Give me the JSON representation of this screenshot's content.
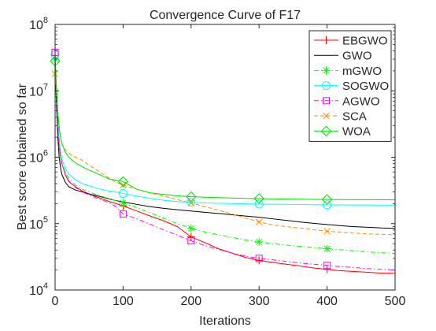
{
  "chart_data": {
    "type": "line",
    "title": "Convergence Curve of F17",
    "xlabel": "Iterations",
    "ylabel": "Best score obtained so far",
    "xlim": [
      0,
      500
    ],
    "ylim": [
      10000,
      100000000
    ],
    "yscale": "log",
    "x_ticks": [
      0,
      100,
      200,
      300,
      400,
      500
    ],
    "y_ticks": [
      {
        "value": 10000,
        "base": "10",
        "exp": "4"
      },
      {
        "value": 100000,
        "base": "10",
        "exp": "5"
      },
      {
        "value": 1000000,
        "base": "10",
        "exp": "6"
      },
      {
        "value": 10000000,
        "base": "10",
        "exp": "7"
      },
      {
        "value": 100000000,
        "base": "10",
        "exp": "8"
      }
    ],
    "grid": false,
    "legend_position": "top-right",
    "series": [
      {
        "name": "EBGWO",
        "color": "#ff0000",
        "line": "solid",
        "marker": "plus",
        "x": [
          0,
          2,
          4,
          6,
          8,
          10,
          15,
          20,
          30,
          40,
          50,
          60,
          70,
          80,
          90,
          100,
          120,
          140,
          160,
          180,
          200,
          220,
          240,
          260,
          280,
          300,
          320,
          340,
          360,
          380,
          400,
          420,
          440,
          460,
          480,
          500
        ],
        "y": [
          30000000,
          8000000,
          3000000,
          1500000,
          1000000,
          800000,
          550000,
          430000,
          360000,
          310000,
          280000,
          255000,
          235000,
          215000,
          200000,
          185000,
          155000,
          130000,
          110000,
          90000,
          63000,
          52000,
          42000,
          36000,
          31000,
          28000,
          26000,
          24500,
          23000,
          21500,
          20500,
          19500,
          19000,
          18500,
          18000,
          17800
        ]
      },
      {
        "name": "GWO",
        "color": "#000000",
        "line": "solid",
        "marker": "none",
        "x": [
          0,
          2,
          4,
          6,
          8,
          10,
          15,
          20,
          30,
          40,
          50,
          60,
          70,
          80,
          90,
          100,
          120,
          140,
          160,
          180,
          200,
          220,
          240,
          260,
          280,
          300,
          320,
          340,
          360,
          380,
          400,
          420,
          440,
          460,
          480,
          500
        ],
        "y": [
          28000000,
          6000000,
          2000000,
          1000000,
          700000,
          550000,
          420000,
          360000,
          320000,
          300000,
          280000,
          265000,
          250000,
          235000,
          222000,
          212000,
          195000,
          180000,
          170000,
          162000,
          155000,
          148000,
          142000,
          136000,
          130000,
          125000,
          118000,
          112000,
          106000,
          101000,
          97000,
          93000,
          90000,
          88000,
          86000,
          85000
        ]
      },
      {
        "name": "mGWO",
        "color": "#00ff00",
        "line": "dashdot",
        "marker": "asterisk",
        "x": [
          0,
          2,
          4,
          6,
          8,
          10,
          15,
          20,
          30,
          40,
          50,
          60,
          70,
          80,
          90,
          100,
          120,
          140,
          160,
          180,
          200,
          220,
          240,
          260,
          280,
          300,
          320,
          340,
          360,
          380,
          400,
          420,
          440,
          460,
          480,
          500
        ],
        "y": [
          30000000,
          8000000,
          3000000,
          1500000,
          1000000,
          800000,
          600000,
          480000,
          380000,
          330000,
          300000,
          275000,
          255000,
          235000,
          220000,
          205000,
          175000,
          145000,
          120000,
          100000,
          85000,
          75000,
          68000,
          62000,
          57000,
          53000,
          50000,
          47500,
          45500,
          43500,
          42000,
          40500,
          39000,
          37500,
          36500,
          35500
        ]
      },
      {
        "name": "SOGWO",
        "color": "#00ffff",
        "line": "solid",
        "marker": "circle",
        "x": [
          0,
          2,
          4,
          6,
          8,
          10,
          15,
          20,
          30,
          40,
          50,
          60,
          70,
          80,
          90,
          100,
          120,
          140,
          160,
          180,
          200,
          220,
          240,
          260,
          280,
          300,
          320,
          340,
          360,
          380,
          400,
          420,
          440,
          460,
          480,
          500
        ],
        "y": [
          35000000,
          10000000,
          3500000,
          1800000,
          1200000,
          950000,
          680000,
          560000,
          460000,
          400000,
          370000,
          345000,
          325000,
          310000,
          298000,
          285000,
          260000,
          240000,
          225000,
          215000,
          210000,
          205000,
          203000,
          201000,
          199000,
          197000,
          196000,
          195000,
          194000,
          193000,
          192000,
          191500,
          191000,
          190500,
          190000,
          190000
        ]
      },
      {
        "name": "AGWO",
        "color": "#ff00ff",
        "line": "dashdot",
        "marker": "square",
        "x": [
          0,
          2,
          4,
          6,
          8,
          10,
          15,
          20,
          30,
          40,
          50,
          60,
          70,
          80,
          90,
          100,
          120,
          140,
          160,
          180,
          200,
          220,
          240,
          260,
          280,
          300,
          320,
          340,
          360,
          380,
          400,
          420,
          440,
          460,
          480,
          500
        ],
        "y": [
          38000000,
          9000000,
          3200000,
          1600000,
          1050000,
          820000,
          560000,
          440000,
          350000,
          300000,
          270000,
          245000,
          225000,
          205000,
          180000,
          140000,
          118000,
          98000,
          80000,
          67000,
          55000,
          47000,
          41000,
          36000,
          32500,
          30000,
          28500,
          27000,
          25500,
          24500,
          23500,
          22500,
          21800,
          21000,
          20500,
          20000
        ]
      },
      {
        "name": "SCA",
        "color": "#ff8c00",
        "line": "dashed",
        "marker": "x",
        "x": [
          0,
          2,
          4,
          6,
          8,
          10,
          15,
          20,
          30,
          40,
          50,
          60,
          70,
          80,
          90,
          100,
          120,
          140,
          160,
          180,
          200,
          220,
          240,
          260,
          280,
          300,
          320,
          340,
          360,
          380,
          400,
          420,
          440,
          460,
          480,
          500
        ],
        "y": [
          18000000,
          10000000,
          5000000,
          2800000,
          2000000,
          1600000,
          1300000,
          1150000,
          1000000,
          900000,
          760000,
          650000,
          560000,
          480000,
          420000,
          380000,
          330000,
          290000,
          260000,
          230000,
          205000,
          180000,
          160000,
          140000,
          122000,
          106000,
          96000,
          90000,
          86000,
          81000,
          77000,
          74000,
          72000,
          70000,
          69000,
          68000
        ]
      },
      {
        "name": "WOA",
        "color": "#00e000",
        "line": "solid",
        "marker": "diamond",
        "x": [
          0,
          2,
          4,
          6,
          8,
          10,
          15,
          20,
          30,
          40,
          50,
          60,
          70,
          80,
          90,
          100,
          120,
          140,
          160,
          180,
          200,
          220,
          240,
          260,
          280,
          300,
          320,
          340,
          360,
          380,
          400,
          420,
          440,
          460,
          480,
          500
        ],
        "y": [
          28000000,
          12000000,
          5000000,
          2800000,
          2000000,
          1600000,
          1200000,
          1000000,
          820000,
          720000,
          640000,
          580000,
          520000,
          470000,
          450000,
          430000,
          330000,
          290000,
          275000,
          262000,
          255000,
          250000,
          246000,
          243000,
          240000,
          238000,
          236000,
          234500,
          233000,
          232000,
          231000,
          230000,
          229500,
          229000,
          228500,
          228000
        ]
      }
    ]
  }
}
